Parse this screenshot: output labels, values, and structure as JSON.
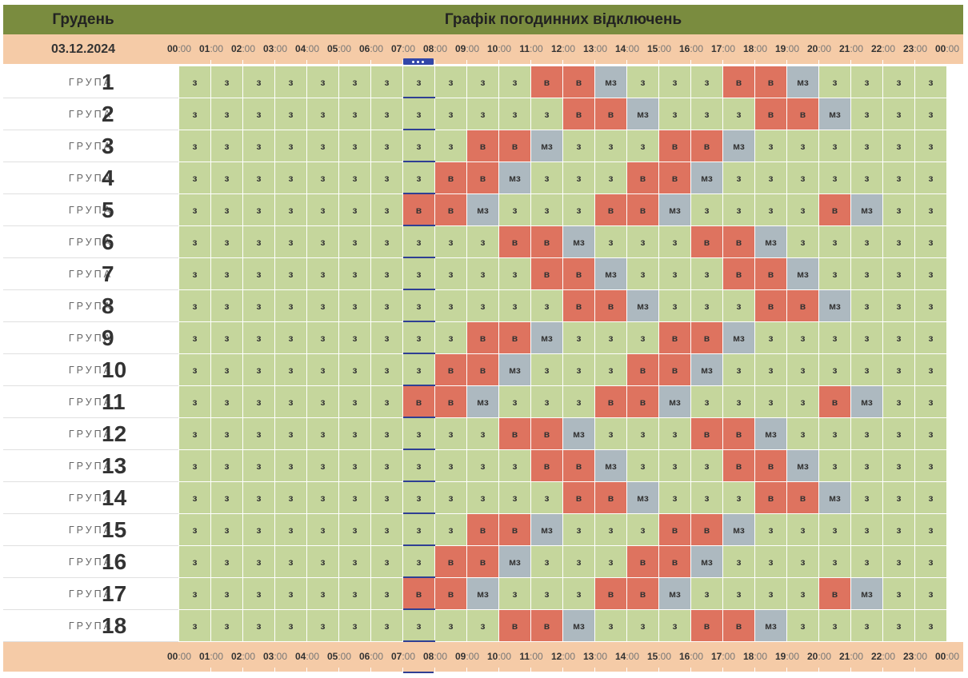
{
  "header": {
    "month": "Грудень",
    "title": "Графік погодинних відключень"
  },
  "date": "03.12.2024",
  "hours": [
    "00",
    "01",
    "02",
    "03",
    "04",
    "05",
    "06",
    "07",
    "08",
    "09",
    "10",
    "11",
    "12",
    "13",
    "14",
    "15",
    "16",
    "17",
    "18",
    "19",
    "20",
    "21",
    "22",
    "23",
    "00"
  ],
  "minutes": ":00",
  "group_word": "ГРУПА",
  "legend": {
    "z": "з",
    "v": "в",
    "mz": "мз"
  },
  "colors": {
    "header": "#7a8c3f",
    "timebar": "#f5cba7",
    "z": "#c5d69c",
    "v": "#de735f",
    "mz": "#adb9c0",
    "now": "#2f3f94"
  },
  "current_hour": 7,
  "groups": [
    {
      "number": "1",
      "slots": [
        "з",
        "з",
        "з",
        "з",
        "з",
        "з",
        "з",
        "з",
        "з",
        "з",
        "з",
        "в",
        "в",
        "мз",
        "з",
        "з",
        "з",
        "в",
        "в",
        "мз",
        "з",
        "з",
        "з",
        "з"
      ]
    },
    {
      "number": "2",
      "slots": [
        "з",
        "з",
        "з",
        "з",
        "з",
        "з",
        "з",
        "з",
        "з",
        "з",
        "з",
        "з",
        "в",
        "в",
        "мз",
        "з",
        "з",
        "з",
        "в",
        "в",
        "мз",
        "з",
        "з",
        "з"
      ]
    },
    {
      "number": "3",
      "slots": [
        "з",
        "з",
        "з",
        "з",
        "з",
        "з",
        "з",
        "з",
        "з",
        "в",
        "в",
        "мз",
        "з",
        "з",
        "з",
        "в",
        "в",
        "мз",
        "з",
        "з",
        "з",
        "з",
        "з",
        "з"
      ]
    },
    {
      "number": "4",
      "slots": [
        "з",
        "з",
        "з",
        "з",
        "з",
        "з",
        "з",
        "з",
        "в",
        "в",
        "мз",
        "з",
        "з",
        "з",
        "в",
        "в",
        "мз",
        "з",
        "з",
        "з",
        "з",
        "з",
        "з",
        "з"
      ]
    },
    {
      "number": "5",
      "slots": [
        "з",
        "з",
        "з",
        "з",
        "з",
        "з",
        "з",
        "в",
        "в",
        "мз",
        "з",
        "з",
        "з",
        "в",
        "в",
        "мз",
        "з",
        "з",
        "з",
        "з",
        "в",
        "мз",
        "з",
        "з"
      ]
    },
    {
      "number": "6",
      "slots": [
        "з",
        "з",
        "з",
        "з",
        "з",
        "з",
        "з",
        "з",
        "з",
        "з",
        "в",
        "в",
        "мз",
        "з",
        "з",
        "з",
        "в",
        "в",
        "мз",
        "з",
        "з",
        "з",
        "з",
        "з"
      ]
    },
    {
      "number": "7",
      "slots": [
        "з",
        "з",
        "з",
        "з",
        "з",
        "з",
        "з",
        "з",
        "з",
        "з",
        "з",
        "в",
        "в",
        "мз",
        "з",
        "з",
        "з",
        "в",
        "в",
        "мз",
        "з",
        "з",
        "з",
        "з"
      ]
    },
    {
      "number": "8",
      "slots": [
        "з",
        "з",
        "з",
        "з",
        "з",
        "з",
        "з",
        "з",
        "з",
        "з",
        "з",
        "з",
        "в",
        "в",
        "мз",
        "з",
        "з",
        "з",
        "в",
        "в",
        "мз",
        "з",
        "з",
        "з"
      ]
    },
    {
      "number": "9",
      "slots": [
        "з",
        "з",
        "з",
        "з",
        "з",
        "з",
        "з",
        "з",
        "з",
        "в",
        "в",
        "мз",
        "з",
        "з",
        "з",
        "в",
        "в",
        "мз",
        "з",
        "з",
        "з",
        "з",
        "з",
        "з"
      ]
    },
    {
      "number": "10",
      "slots": [
        "з",
        "з",
        "з",
        "з",
        "з",
        "з",
        "з",
        "з",
        "в",
        "в",
        "мз",
        "з",
        "з",
        "з",
        "в",
        "в",
        "мз",
        "з",
        "з",
        "з",
        "з",
        "з",
        "з",
        "з"
      ]
    },
    {
      "number": "11",
      "slots": [
        "з",
        "з",
        "з",
        "з",
        "з",
        "з",
        "з",
        "в",
        "в",
        "мз",
        "з",
        "з",
        "з",
        "в",
        "в",
        "мз",
        "з",
        "з",
        "з",
        "з",
        "в",
        "мз",
        "з",
        "з"
      ]
    },
    {
      "number": "12",
      "slots": [
        "з",
        "з",
        "з",
        "з",
        "з",
        "з",
        "з",
        "з",
        "з",
        "з",
        "в",
        "в",
        "мз",
        "з",
        "з",
        "з",
        "в",
        "в",
        "мз",
        "з",
        "з",
        "з",
        "з",
        "з"
      ]
    },
    {
      "number": "13",
      "slots": [
        "з",
        "з",
        "з",
        "з",
        "з",
        "з",
        "з",
        "з",
        "з",
        "з",
        "з",
        "в",
        "в",
        "мз",
        "з",
        "з",
        "з",
        "в",
        "в",
        "мз",
        "з",
        "з",
        "з",
        "з"
      ]
    },
    {
      "number": "14",
      "slots": [
        "з",
        "з",
        "з",
        "з",
        "з",
        "з",
        "з",
        "з",
        "з",
        "з",
        "з",
        "з",
        "в",
        "в",
        "мз",
        "з",
        "з",
        "з",
        "в",
        "в",
        "мз",
        "з",
        "з",
        "з"
      ]
    },
    {
      "number": "15",
      "slots": [
        "з",
        "з",
        "з",
        "з",
        "з",
        "з",
        "з",
        "з",
        "з",
        "в",
        "в",
        "мз",
        "з",
        "з",
        "з",
        "в",
        "в",
        "мз",
        "з",
        "з",
        "з",
        "з",
        "з",
        "з"
      ]
    },
    {
      "number": "16",
      "slots": [
        "з",
        "з",
        "з",
        "з",
        "з",
        "з",
        "з",
        "з",
        "в",
        "в",
        "мз",
        "з",
        "з",
        "з",
        "в",
        "в",
        "мз",
        "з",
        "з",
        "з",
        "з",
        "з",
        "з",
        "з"
      ]
    },
    {
      "number": "17",
      "slots": [
        "з",
        "з",
        "з",
        "з",
        "з",
        "з",
        "з",
        "в",
        "в",
        "мз",
        "з",
        "з",
        "з",
        "в",
        "в",
        "мз",
        "з",
        "з",
        "з",
        "з",
        "в",
        "мз",
        "з",
        "з"
      ]
    },
    {
      "number": "18",
      "slots": [
        "з",
        "з",
        "з",
        "з",
        "з",
        "з",
        "з",
        "з",
        "з",
        "з",
        "в",
        "в",
        "мз",
        "з",
        "з",
        "з",
        "в",
        "в",
        "мз",
        "з",
        "з",
        "з",
        "з",
        "з"
      ]
    }
  ]
}
